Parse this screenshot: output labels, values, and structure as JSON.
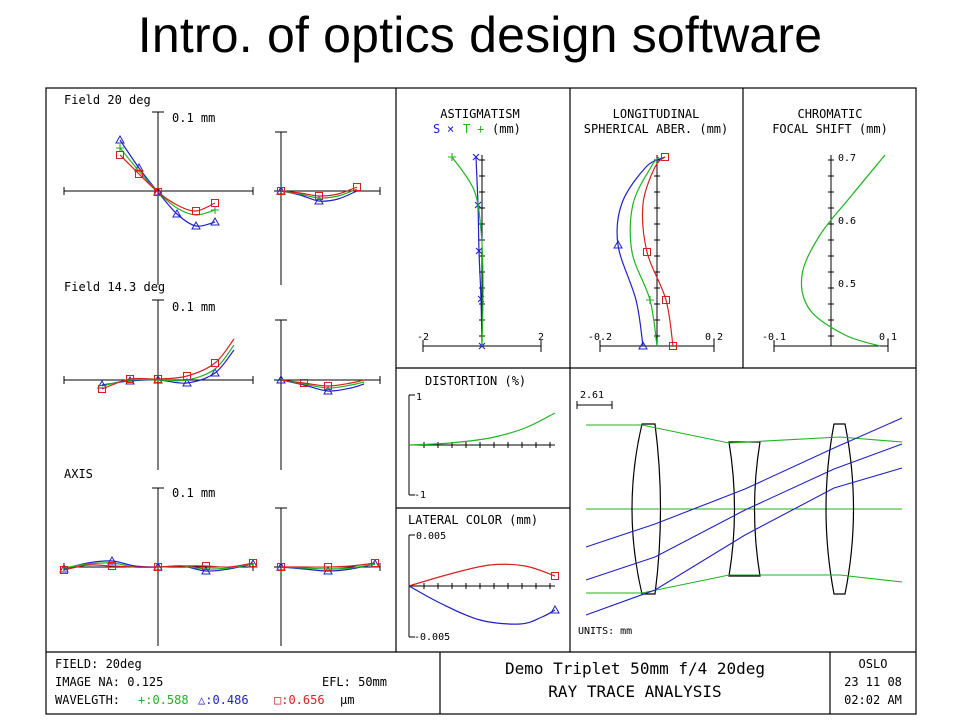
{
  "slide_title": "Intro. of optics design software",
  "colors": {
    "green": "#1fb31f",
    "blue": "#2020c8",
    "red": "#d81f1f",
    "black": "#000000"
  },
  "ray_fan": {
    "fields": [
      {
        "label": "Field 20 deg",
        "scale": "0.1 mm"
      },
      {
        "label": "Field 14.3 deg",
        "scale": "0.1 mm"
      },
      {
        "label": "AXIS",
        "scale": "0.1 mm"
      }
    ]
  },
  "astigmatism": {
    "title1": "ASTIGMATISM",
    "legend_s": "S",
    "legend_x": "×",
    "legend_t": "T",
    "legend_plus": "+",
    "legend_unit": "(mm)",
    "tick_left": "-2",
    "tick_right": "2"
  },
  "spherical": {
    "title1": "LONGITUDINAL",
    "title2": "SPHERICAL ABER. (mm)",
    "tick_left": "-0.2",
    "tick_right": "0.2"
  },
  "chromatic": {
    "title1": "CHROMATIC",
    "title2": "FOCAL SHIFT (mm)",
    "y_ticks": [
      "0.7",
      "0.6",
      "0.5"
    ],
    "tick_left": "-0.1",
    "tick_right": "0.1"
  },
  "distortion": {
    "title": "DISTORTION (%)",
    "y_top": "1",
    "y_bottom": "-1"
  },
  "lateral_color": {
    "title": "LATERAL COLOR (mm)",
    "y_top": "0.005",
    "y_bottom": "-0.005"
  },
  "layout": {
    "scale_bar": "2.61",
    "units": "UNITS: mm"
  },
  "footer": {
    "field": "FIELD: 20deg",
    "image_na": "IMAGE NA: 0.125",
    "efl": "EFL: 50mm",
    "wavelength_label": "WAVELGTH:",
    "w1": "+:0.588",
    "w2": "△:0.486",
    "w3": "□:0.656",
    "w_unit": "µm",
    "title1": "Demo Triplet 50mm f/4 20deg",
    "title2": "RAY TRACE ANALYSIS",
    "brand": "OSLO",
    "date": "23 11 08",
    "time": "02:02 AM"
  }
}
